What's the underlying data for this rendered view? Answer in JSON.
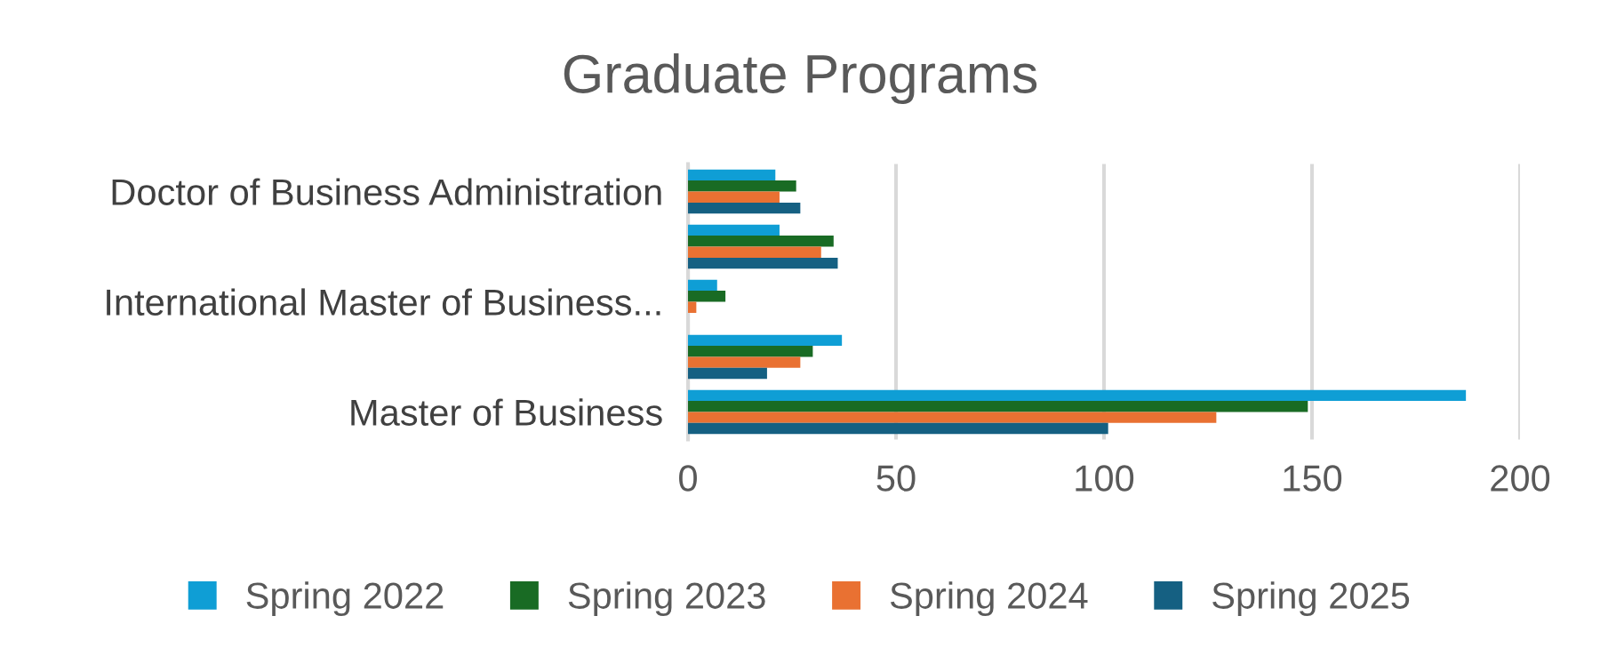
{
  "chart_data": {
    "type": "bar",
    "orientation": "horizontal",
    "title": "Graduate Programs",
    "categories": [
      "Doctor of Business Administration",
      null,
      "International Master of Business...",
      null,
      "Master of Business"
    ],
    "series": [
      {
        "name": "Spring 2022",
        "color": "#0f9ed5",
        "values": [
          21,
          22,
          7,
          37,
          187
        ]
      },
      {
        "name": "Spring 2023",
        "color": "#196b24",
        "values": [
          26,
          35,
          9,
          30,
          149
        ]
      },
      {
        "name": "Spring 2024",
        "color": "#e97132",
        "values": [
          22,
          32,
          2,
          27,
          127
        ]
      },
      {
        "name": "Spring 2025",
        "color": "#156082",
        "values": [
          27,
          36,
          0,
          19,
          101
        ]
      }
    ],
    "xlim": [
      0,
      200
    ],
    "xticks": [
      0,
      50,
      100,
      150,
      200
    ],
    "grid": "x",
    "legend": "bottom"
  }
}
